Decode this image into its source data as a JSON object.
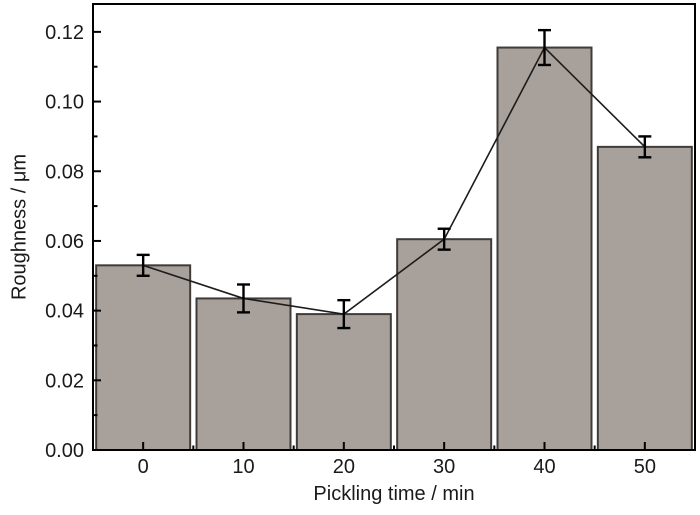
{
  "chart_data": {
    "type": "bar",
    "xlabel": "Pickling time / min",
    "ylabel": "Roughness / μm",
    "categories": [
      0,
      10,
      20,
      30,
      40,
      50
    ],
    "xtick_labels": [
      "0",
      "10",
      "20",
      "30",
      "40",
      "50"
    ],
    "values": [
      0.053,
      0.0435,
      0.039,
      0.0605,
      0.1155,
      0.087
    ],
    "errors": [
      0.003,
      0.004,
      0.004,
      0.003,
      0.005,
      0.003
    ],
    "overlay_line": true,
    "error_bars": true,
    "ylim": [
      0,
      0.128
    ],
    "yticks_major": [
      0.0,
      0.02,
      0.04,
      0.06,
      0.08,
      0.1,
      0.12
    ],
    "ytick_labels": [
      "0.00",
      "0.02",
      "0.04",
      "0.06",
      "0.08",
      "0.10",
      "0.12"
    ],
    "yticks_minor": [
      0.01,
      0.03,
      0.05,
      0.07,
      0.09,
      0.11
    ],
    "grid": false,
    "legend": "none",
    "tick_direction": "in",
    "colors": {
      "bar_fill": "#a8a09b",
      "bar_edge": "#3f3b38",
      "line": "#1c1c1c",
      "error": "#000000",
      "axis": "#000000",
      "text": "#1a1a1a",
      "background": "#ffffff"
    }
  }
}
